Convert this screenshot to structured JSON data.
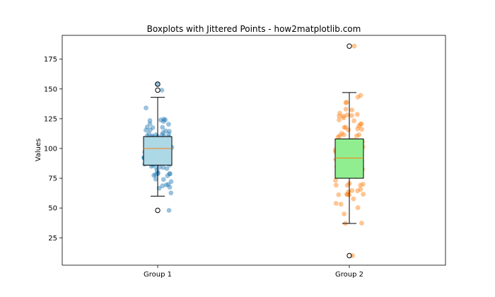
{
  "chart_data": {
    "type": "box",
    "title": "Boxplots with Jittered Points - how2matplotlib.com",
    "xlabel": "",
    "ylabel": "Values",
    "ylim": [
      2,
      195
    ],
    "yticks": [
      25,
      50,
      75,
      100,
      125,
      150,
      175
    ],
    "categories": [
      "Group 1",
      "Group 2"
    ],
    "grid": false,
    "boxes": [
      {
        "category": "Group 1",
        "whisker_low": 60,
        "q1": 86,
        "median": 100,
        "q3": 110,
        "whisker_high": 143,
        "outliers": [
          48,
          149,
          154
        ],
        "fill": "#add8e6",
        "point_color": "#1f77b4"
      },
      {
        "category": "Group 2",
        "whisker_low": 37,
        "q1": 75,
        "median": 92,
        "q3": 108,
        "whisker_high": 147,
        "outliers": [
          10,
          186
        ],
        "fill": "#90ee90",
        "point_color": "#ff7f0e"
      }
    ],
    "median_color": "#ff7f0e"
  }
}
